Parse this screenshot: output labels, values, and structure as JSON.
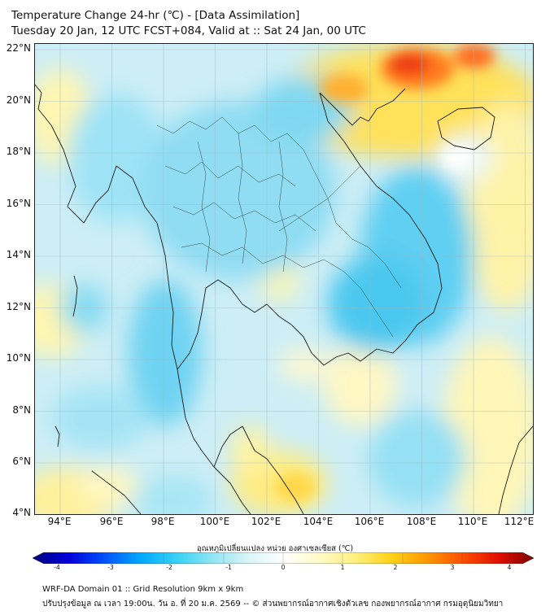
{
  "title": {
    "line1": "Temperature Change 24-hr (℃) - [Data Assimilation]",
    "line2": "Tuesday 20 Jan, 12 UTC FCST+084, Valid at :: Sat 24 Jan, 00 UTC"
  },
  "map": {
    "lat_labels": [
      "22°N",
      "20°N",
      "18°N",
      "16°N",
      "14°N",
      "12°N",
      "10°N",
      "8°N",
      "6°N",
      "4°N"
    ],
    "lon_labels": [
      "94°E",
      "96°E",
      "98°E",
      "100°E",
      "102°E",
      "104°E",
      "106°E",
      "108°E",
      "110°E",
      "112°E"
    ],
    "lat_range": [
      4,
      22.2
    ],
    "lon_range": [
      93,
      112.3
    ]
  },
  "colorbar": {
    "label": "อุณหภูมิเปลี่ยนแปลง หน่วย องศาเซลเซียส (℃)",
    "ticks": [
      "-4",
      "-3",
      "-2",
      "-1",
      "0",
      "1",
      "2",
      "3",
      "4"
    ],
    "range": [
      -4,
      4
    ],
    "colors": [
      "#00007f",
      "#0000d9",
      "#0050ff",
      "#00a8ff",
      "#35d0f5",
      "#8ee4f4",
      "#d8f4f7",
      "#ffffff",
      "#fffbc8",
      "#fff080",
      "#ffd21a",
      "#ff9900",
      "#ff5000",
      "#e01000",
      "#7f0000"
    ]
  },
  "footer": {
    "line1": "WRF-DA Domain 01 :: Grid Resolution 9km x 9km",
    "line2": "ปรับปรุงข้อมูล ณ เวลา 19:00น. วัน อ. ที่ 20 ม.ค. 2569 -- © ส่วนพยากรณ์อากาศเชิงตัวเลข กองพยากรณ์อากาศ กรมอุตุนิยมวิทยา"
  }
}
